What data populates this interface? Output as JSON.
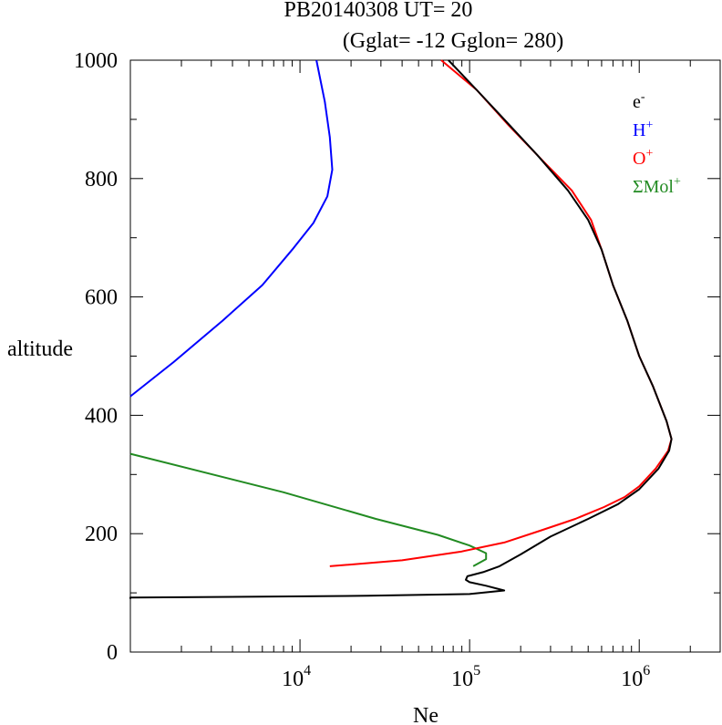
{
  "chart_data": {
    "type": "line",
    "title_line1": "PB20140308   UT=  20",
    "title_line2": "(Gglat= -12   Gglon=  280)",
    "xlabel": "Ne",
    "ylabel": "altitude",
    "x_scale": "log",
    "xlim": [
      1000,
      3000000
    ],
    "ylim": [
      0,
      1000
    ],
    "y_ticks": [
      "0",
      "200",
      "400",
      "600",
      "800",
      "1000"
    ],
    "x_ticks": [
      {
        "base": "10",
        "exp": "4"
      },
      {
        "base": "10",
        "exp": "5"
      },
      {
        "base": "10",
        "exp": "6"
      }
    ],
    "grid": false,
    "legend_position": "top-right",
    "series": [
      {
        "name": "e",
        "superscript": "-",
        "color": "#000000",
        "points": [
          [
            1000,
            90
          ],
          [
            1000,
            92
          ],
          [
            25000,
            95
          ],
          [
            100000,
            98
          ],
          [
            160000,
            104
          ],
          [
            125000,
            112
          ],
          [
            100000,
            118
          ],
          [
            95000,
            122
          ],
          [
            97000,
            128
          ],
          [
            120000,
            135
          ],
          [
            150000,
            145
          ],
          [
            200000,
            165
          ],
          [
            300000,
            195
          ],
          [
            500000,
            225
          ],
          [
            750000,
            250
          ],
          [
            1000000,
            275
          ],
          [
            1300000,
            310
          ],
          [
            1500000,
            340
          ],
          [
            1550000,
            360
          ],
          [
            1450000,
            390
          ],
          [
            1200000,
            450
          ],
          [
            1000000,
            500
          ],
          [
            850000,
            560
          ],
          [
            700000,
            620
          ],
          [
            600000,
            680
          ],
          [
            500000,
            730
          ],
          [
            380000,
            780
          ],
          [
            250000,
            840
          ],
          [
            160000,
            900
          ],
          [
            110000,
            950
          ],
          [
            75000,
            1000
          ]
        ]
      },
      {
        "name": "H",
        "superscript": "+",
        "color": "#0000ff",
        "points": [
          [
            1000,
            432
          ],
          [
            1800,
            490
          ],
          [
            3500,
            560
          ],
          [
            6000,
            620
          ],
          [
            9000,
            680
          ],
          [
            12000,
            725
          ],
          [
            14500,
            770
          ],
          [
            15500,
            815
          ],
          [
            15000,
            870
          ],
          [
            14000,
            930
          ],
          [
            12500,
            1000
          ]
        ]
      },
      {
        "name": "O",
        "superscript": "+",
        "color": "#ff0000",
        "points": [
          [
            15000,
            145
          ],
          [
            40000,
            155
          ],
          [
            90000,
            170
          ],
          [
            160000,
            185
          ],
          [
            260000,
            205
          ],
          [
            420000,
            225
          ],
          [
            620000,
            245
          ],
          [
            820000,
            262
          ],
          [
            1000000,
            280
          ],
          [
            1250000,
            310
          ],
          [
            1480000,
            340
          ],
          [
            1550000,
            360
          ],
          [
            1450000,
            390
          ],
          [
            1200000,
            450
          ],
          [
            1000000,
            500
          ],
          [
            850000,
            560
          ],
          [
            700000,
            620
          ],
          [
            600000,
            680
          ],
          [
            520000,
            730
          ],
          [
            400000,
            780
          ],
          [
            270000,
            830
          ],
          [
            170000,
            890
          ],
          [
            110000,
            950
          ],
          [
            68000,
            1000
          ]
        ]
      },
      {
        "name": "ΣMol",
        "superscript": "+",
        "color": "#228b22",
        "points": [
          [
            1000,
            335
          ],
          [
            8000,
            270
          ],
          [
            28000,
            225
          ],
          [
            65000,
            198
          ],
          [
            100000,
            180
          ],
          [
            125000,
            167
          ],
          [
            125000,
            157
          ],
          [
            105000,
            145
          ]
        ]
      }
    ]
  }
}
